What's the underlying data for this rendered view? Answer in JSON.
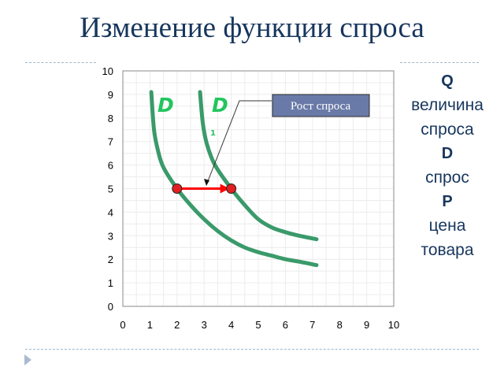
{
  "title": "Изменение функции спроса",
  "legend": [
    {
      "symbol": "Q",
      "lines": [
        "величина",
        "спроса"
      ]
    },
    {
      "symbol": "D",
      "lines": [
        "спрос"
      ]
    },
    {
      "symbol": "P",
      "lines": [
        "цена",
        "товара"
      ]
    }
  ],
  "chart_data": {
    "type": "line",
    "title": "",
    "xlabel": "",
    "ylabel": "",
    "xlim": [
      0,
      10
    ],
    "ylim": [
      0,
      10
    ],
    "x_ticks": [
      "0",
      "1",
      "2",
      "3",
      "4",
      "5",
      "6",
      "7",
      "8",
      "9",
      "10"
    ],
    "y_ticks": [
      "0",
      "1",
      "2",
      "3",
      "4",
      "5",
      "6",
      "7",
      "8",
      "9",
      "10"
    ],
    "grid": true,
    "series": [
      {
        "name": "D",
        "color": "#3a9a6a",
        "points": [
          [
            1.05,
            9.1
          ],
          [
            1.15,
            7.5
          ],
          [
            1.3,
            6.6
          ],
          [
            1.5,
            5.9
          ],
          [
            2.0,
            5.0
          ],
          [
            2.5,
            4.3
          ],
          [
            3.0,
            3.7
          ],
          [
            3.5,
            3.2
          ],
          [
            4.0,
            2.8
          ],
          [
            4.5,
            2.5
          ],
          [
            5.0,
            2.3
          ],
          [
            5.5,
            2.15
          ],
          [
            6.0,
            2.0
          ],
          [
            6.5,
            1.9
          ],
          [
            7.15,
            1.75
          ]
        ]
      },
      {
        "name": "D",
        "subscript": "1",
        "color": "#3a9a6a",
        "points": [
          [
            2.85,
            9.1
          ],
          [
            2.95,
            7.8
          ],
          [
            3.1,
            6.9
          ],
          [
            3.4,
            6.0
          ],
          [
            4.0,
            5.0
          ],
          [
            4.5,
            4.3
          ],
          [
            5.0,
            3.7
          ],
          [
            5.5,
            3.35
          ],
          [
            6.0,
            3.15
          ],
          [
            6.5,
            3.0
          ],
          [
            7.15,
            2.85
          ]
        ]
      }
    ],
    "points": [
      {
        "x": 2,
        "y": 5,
        "color": "#e02020"
      },
      {
        "x": 4,
        "y": 5,
        "color": "#e02020"
      }
    ],
    "shift_arrow": {
      "from": [
        2,
        5
      ],
      "to": [
        4,
        5
      ],
      "color": "#ff0000"
    },
    "annotation": {
      "text": "Рост спроса"
    }
  }
}
